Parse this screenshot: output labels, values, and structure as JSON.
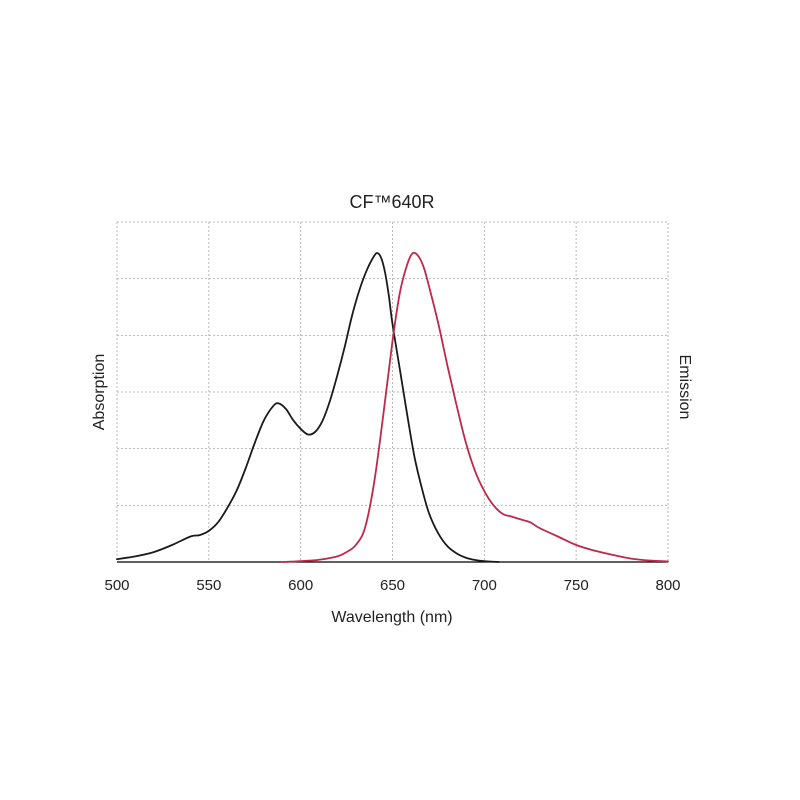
{
  "chart_data": {
    "type": "line",
    "title": "CF™640R",
    "xlabel": "Wavelength (nm)",
    "ylabel_left": "Absorption",
    "ylabel_right": "Emission",
    "xlim": [
      500,
      800
    ],
    "ylim": [
      0,
      1.2
    ],
    "x_ticks": [
      "500",
      "550",
      "600",
      "650",
      "700",
      "750",
      "800"
    ],
    "grid": true,
    "series": [
      {
        "key": "absorption",
        "color": "#1a1a1a",
        "x": [
          500,
          510,
          520,
          530,
          540,
          545,
          550,
          555,
          560,
          565,
          570,
          575,
          580,
          585,
          588,
          592,
          596,
          600,
          604,
          608,
          612,
          616,
          620,
          624,
          628,
          632,
          636,
          640,
          642,
          644,
          646,
          648,
          650,
          654,
          658,
          662,
          666,
          670,
          675,
          680,
          685,
          690,
          695,
          700,
          705,
          708
        ],
        "y": [
          0.01,
          0.02,
          0.035,
          0.06,
          0.09,
          0.095,
          0.11,
          0.14,
          0.19,
          0.25,
          0.33,
          0.42,
          0.5,
          0.55,
          0.56,
          0.54,
          0.5,
          0.47,
          0.45,
          0.46,
          0.5,
          0.57,
          0.66,
          0.76,
          0.87,
          0.96,
          1.03,
          1.08,
          1.09,
          1.07,
          1.02,
          0.94,
          0.84,
          0.68,
          0.52,
          0.37,
          0.26,
          0.17,
          0.1,
          0.055,
          0.03,
          0.015,
          0.007,
          0.003,
          0.001,
          0.0
        ]
      },
      {
        "key": "emission",
        "color": "#c0284a",
        "x": [
          590,
          600,
          610,
          620,
          625,
          630,
          635,
          640,
          645,
          650,
          654,
          658,
          661,
          664,
          667,
          670,
          675,
          680,
          685,
          690,
          695,
          700,
          705,
          710,
          715,
          720,
          725,
          730,
          740,
          750,
          760,
          770,
          780,
          790,
          800
        ],
        "y": [
          0.0,
          0.003,
          0.008,
          0.02,
          0.035,
          0.06,
          0.12,
          0.28,
          0.52,
          0.78,
          0.95,
          1.05,
          1.09,
          1.08,
          1.04,
          0.97,
          0.84,
          0.69,
          0.55,
          0.42,
          0.32,
          0.25,
          0.2,
          0.17,
          0.16,
          0.15,
          0.14,
          0.12,
          0.09,
          0.06,
          0.04,
          0.025,
          0.012,
          0.005,
          0.002
        ]
      }
    ]
  }
}
